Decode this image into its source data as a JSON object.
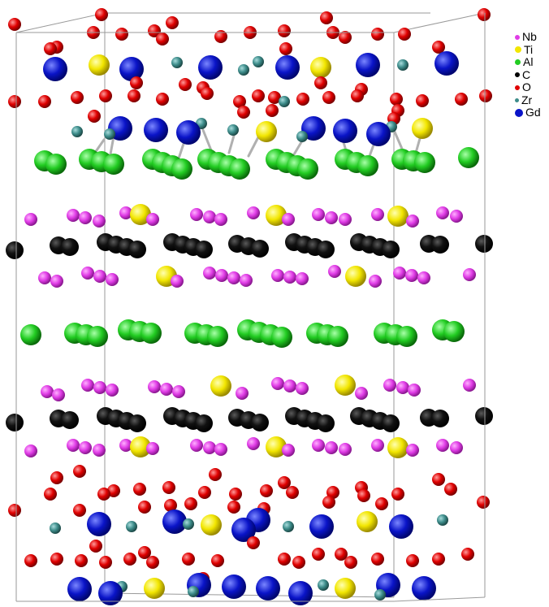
{
  "legend": {
    "items": [
      {
        "label": "Nb",
        "color": "#e03ce6",
        "size": 6
      },
      {
        "label": "Ti",
        "color": "#f2e600",
        "size": 8
      },
      {
        "label": "Al",
        "color": "#22cc22",
        "size": 7
      },
      {
        "label": "C",
        "color": "#000000",
        "size": 6
      },
      {
        "label": "O",
        "color": "#e00000",
        "size": 6
      },
      {
        "label": "Zr",
        "color": "#3d8c8a",
        "size": 5
      },
      {
        "label": "Gd",
        "color": "#0a14c8",
        "size": 10
      }
    ]
  },
  "element_colors": {
    "Nb": "#e03ce6",
    "Ti": "#f2e600",
    "Al": "#22cc22",
    "C": "#000000",
    "O": "#e00000",
    "Zr": "#3d8c8a",
    "Gd": "#0a14c8"
  }
}
